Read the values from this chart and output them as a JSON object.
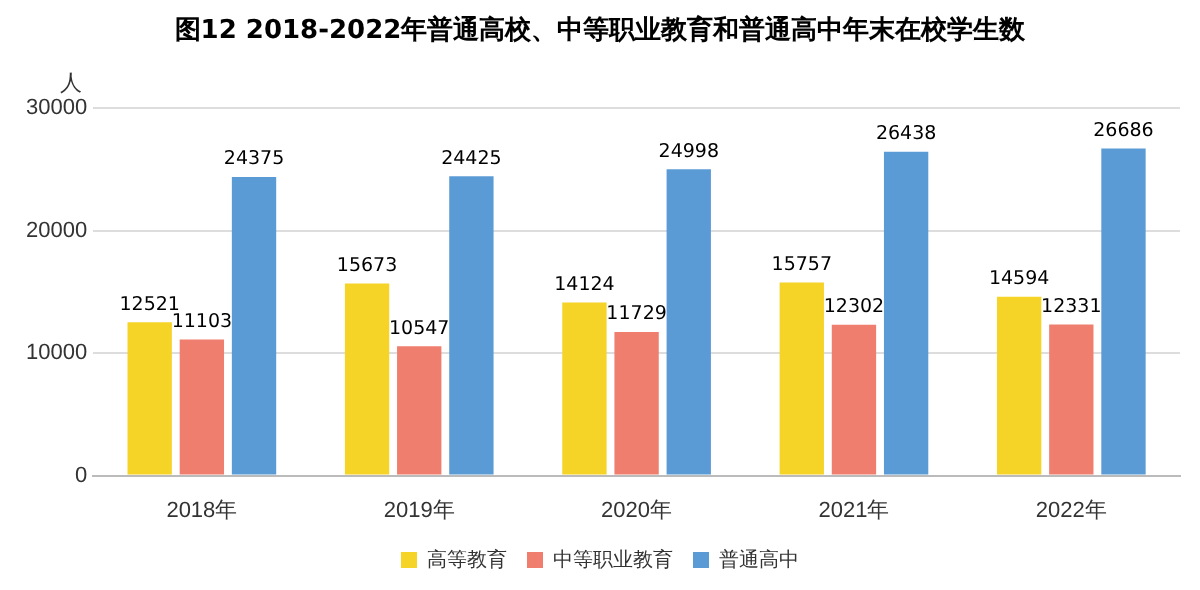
{
  "chart_data": {
    "type": "bar",
    "title": "图12  2018-2022年普通高校、中等职业教育和普通高中年末在校学生数",
    "ylabel": "人",
    "categories": [
      "2018年",
      "2019年",
      "2020年",
      "2021年",
      "2022年"
    ],
    "series": [
      {
        "name": "高等教育",
        "color": "#f5d327",
        "values": [
          12521,
          15673,
          14124,
          15757,
          14594
        ]
      },
      {
        "name": "中等职业教育",
        "color": "#f07e6e",
        "values": [
          11103,
          10547,
          11729,
          12302,
          12331
        ]
      },
      {
        "name": "普通高中",
        "color": "#5b9bd5",
        "values": [
          24375,
          24425,
          24998,
          26438,
          26686
        ]
      }
    ],
    "ylim": [
      0,
      30000
    ],
    "yticks": [
      0,
      10000,
      20000,
      30000
    ],
    "grid": "y",
    "legend": "bottom",
    "data_labels": true
  }
}
